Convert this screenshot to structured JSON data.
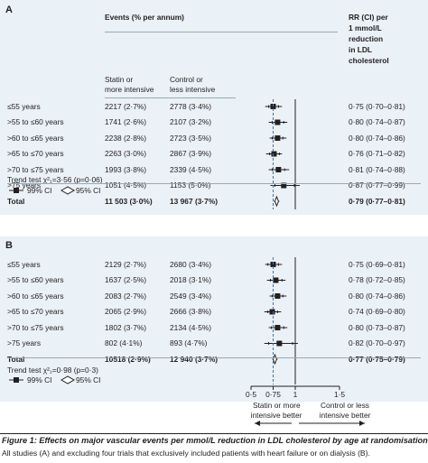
{
  "caption": {
    "figure_label": "Figure 1:",
    "title": "Effects on major vascular events per mmol/L reduction in LDL cholesterol by age at randomisation",
    "body": "All studies (A) and excluding four trials that exclusively included patients with heart failure or on dialysis (B)."
  },
  "header": {
    "events": "Events (% per annum)",
    "rr_lines": [
      "RR (CI) per",
      "1 mmol/L",
      "reduction",
      "in LDL",
      "cholesterol"
    ],
    "statin_lines": [
      "Statin or",
      "more intensive"
    ],
    "control_lines": [
      "Control or",
      "less intensive"
    ]
  },
  "colors": {
    "panel_bg": "#eaf1f7",
    "text": "#231f20",
    "reference_line": "#3a78b5"
  },
  "legend": {
    "ci99": "99% CI",
    "ci95": "95% CI"
  },
  "axis": {
    "min": 0.5,
    "max": 1.5,
    "reference_line": 0.75,
    "null_line": 1.0,
    "ticks": [
      0.5,
      0.75,
      1,
      1.5
    ],
    "tick_labels": [
      "0·5",
      "0·75",
      "1",
      "1·5"
    ],
    "favours_left": [
      "Statin or more",
      "intensive better"
    ],
    "favours_right": [
      "Control or less",
      "intensive better"
    ]
  },
  "chart_data": [
    {
      "type": "forest",
      "panel": "A",
      "columns": [
        "Events (% per annum) Statin or more intensive",
        "Events (% per annum) Control or less intensive",
        "RR (CI) per 1 mmol/L reduction in LDL cholesterol"
      ],
      "rows": [
        {
          "label": "≤55 years",
          "statin": "2217 (2·7%)",
          "control": "2778 (3·4%)",
          "rr_text": "0·75 (0·70–0·81)",
          "rr": 0.75,
          "ci99": [
            0.66,
            0.85
          ],
          "ci95": [
            0.7,
            0.81
          ]
        },
        {
          "label": ">55 to ≤60 years",
          "statin": "1741 (2·6%)",
          "control": "2107 (3·2%)",
          "rr_text": "0·80 (0·74–0·87)",
          "rr": 0.8,
          "ci99": [
            0.7,
            0.91
          ],
          "ci95": [
            0.74,
            0.87
          ]
        },
        {
          "label": ">60 to ≤65 years",
          "statin": "2238 (2·8%)",
          "control": "2723 (3·5%)",
          "rr_text": "0·80 (0·74–0·86)",
          "rr": 0.8,
          "ci99": [
            0.71,
            0.9
          ],
          "ci95": [
            0.74,
            0.86
          ]
        },
        {
          "label": ">65 to ≤70 years",
          "statin": "2263 (3·0%)",
          "control": "2867 (3·9%)",
          "rr_text": "0·76 (0·71–0·82)",
          "rr": 0.76,
          "ci99": [
            0.67,
            0.85
          ],
          "ci95": [
            0.71,
            0.82
          ]
        },
        {
          "label": ">70 to ≤75 years",
          "statin": "1993 (3·8%)",
          "control": "2339 (4·5%)",
          "rr_text": "0·81 (0·74–0·88)",
          "rr": 0.81,
          "ci99": [
            0.7,
            0.93
          ],
          "ci95": [
            0.74,
            0.88
          ]
        },
        {
          "label": ">75 years",
          "statin": "1051 (4·5%)",
          "control": "1153 (5·0%)",
          "rr_text": "0·87 (0·77–0·99)",
          "rr": 0.87,
          "ci99": [
            0.72,
            1.05
          ],
          "ci95": [
            0.77,
            0.99
          ]
        }
      ],
      "total": {
        "label": "Total",
        "statin": "11 503 (3·0%)",
        "control": "13 967 (3·7%)",
        "rr_text": "0·79 (0·77–0·81)",
        "rr": 0.79,
        "ci99": [
          0.76,
          0.82
        ],
        "ci95": [
          0.77,
          0.81
        ]
      },
      "trend_text": "Trend test χ²₁=3·56 (p=0·06)"
    },
    {
      "type": "forest",
      "panel": "B",
      "rows": [
        {
          "label": "≤55 years",
          "statin": "2129 (2·7%)",
          "control": "2680 (3·4%)",
          "rr_text": "0·75 (0·69–0·81)",
          "rr": 0.75,
          "ci99": [
            0.66,
            0.85
          ],
          "ci95": [
            0.69,
            0.81
          ]
        },
        {
          "label": ">55 to ≤60 years",
          "statin": "1637 (2·5%)",
          "control": "2018 (3·1%)",
          "rr_text": "0·78 (0·72–0·85)",
          "rr": 0.78,
          "ci99": [
            0.68,
            0.89
          ],
          "ci95": [
            0.72,
            0.85
          ]
        },
        {
          "label": ">60 to ≤65 years",
          "statin": "2083 (2·7%)",
          "control": "2549 (3·4%)",
          "rr_text": "0·80 (0·74–0·86)",
          "rr": 0.8,
          "ci99": [
            0.71,
            0.9
          ],
          "ci95": [
            0.74,
            0.86
          ]
        },
        {
          "label": ">65 to ≤70 years",
          "statin": "2065 (2·9%)",
          "control": "2666 (3·8%)",
          "rr_text": "0·74 (0·69–0·80)",
          "rr": 0.74,
          "ci99": [
            0.65,
            0.84
          ],
          "ci95": [
            0.69,
            0.8
          ]
        },
        {
          "label": ">70 to ≤75 years",
          "statin": "1802 (3·7%)",
          "control": "2134 (4·5%)",
          "rr_text": "0·80 (0·73–0·87)",
          "rr": 0.8,
          "ci99": [
            0.7,
            0.91
          ],
          "ci95": [
            0.73,
            0.87
          ]
        },
        {
          "label": ">75 years",
          "statin": "802 (4·1%)",
          "control": "893 (4·7%)",
          "rr_text": "0·82 (0·70–0·97)",
          "rr": 0.82,
          "ci99": [
            0.65,
            1.03
          ],
          "ci95": [
            0.7,
            0.97
          ]
        }
      ],
      "total": {
        "label": "Total",
        "statin": "10518 (2·9%)",
        "control": "12 940 (3·7%)",
        "rr_text": "0·77 (0·75–0·79)",
        "rr": 0.77,
        "ci99": [
          0.74,
          0.8
        ],
        "ci95": [
          0.75,
          0.79
        ]
      },
      "trend_text": "Trend test χ²₁=0·98 (p=0·3)"
    }
  ]
}
